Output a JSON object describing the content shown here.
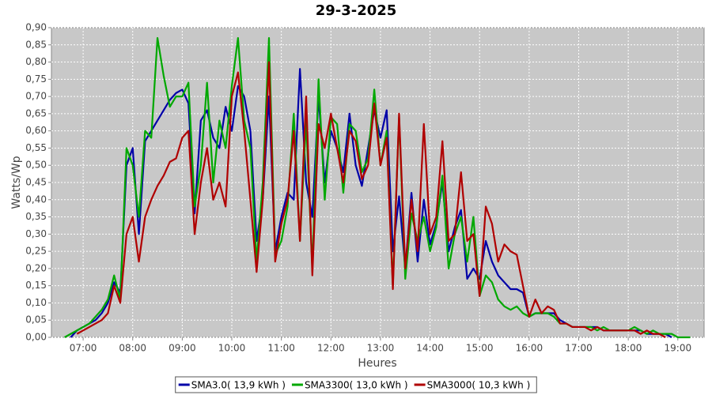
{
  "chart_data": {
    "type": "line",
    "title": "29-3-2025",
    "xlabel": "Heures",
    "ylabel": "Watts/Wp",
    "x": [
      6.5,
      6.625,
      6.75,
      6.875,
      7,
      7.125,
      7.25,
      7.375,
      7.5,
      7.625,
      7.75,
      7.875,
      8,
      8.125,
      8.25,
      8.375,
      8.5,
      8.625,
      8.75,
      8.875,
      9,
      9.125,
      9.25,
      9.375,
      9.5,
      9.625,
      9.75,
      9.875,
      10,
      10.125,
      10.25,
      10.375,
      10.5,
      10.625,
      10.75,
      10.875,
      11,
      11.125,
      11.25,
      11.375,
      11.5,
      11.625,
      11.75,
      11.875,
      12,
      12.125,
      12.25,
      12.375,
      12.5,
      12.625,
      12.75,
      12.875,
      13,
      13.125,
      13.25,
      13.375,
      13.5,
      13.625,
      13.75,
      13.875,
      14,
      14.125,
      14.25,
      14.375,
      14.5,
      14.625,
      14.75,
      14.875,
      15,
      15.125,
      15.25,
      15.375,
      15.5,
      15.625,
      15.75,
      15.875,
      16,
      16.125,
      16.25,
      16.375,
      16.5,
      16.625,
      16.75,
      16.875,
      17,
      17.125,
      17.25,
      17.375,
      17.5,
      17.625,
      17.75,
      17.875,
      18,
      18.125,
      18.25,
      18.375,
      18.5,
      18.625,
      18.75,
      18.875,
      19,
      19.125,
      19.25
    ],
    "series": [
      {
        "name": "SMA3.0( 13,9 kWh )",
        "color": "#0000a8",
        "values": [
          null,
          null,
          0,
          0.02,
          0.03,
          0.04,
          0.05,
          0.07,
          0.1,
          0.16,
          0.13,
          0.5,
          0.55,
          0.3,
          0.57,
          0.6,
          0.63,
          0.66,
          0.69,
          0.71,
          0.72,
          0.68,
          0.36,
          0.63,
          0.66,
          0.58,
          0.55,
          0.67,
          0.6,
          0.73,
          0.7,
          0.6,
          0.28,
          0.4,
          0.7,
          0.25,
          0.35,
          0.42,
          0.4,
          0.78,
          0.45,
          0.35,
          0.7,
          0.45,
          0.6,
          0.55,
          0.48,
          0.65,
          0.5,
          0.44,
          0.55,
          0.66,
          0.58,
          0.66,
          0.25,
          0.41,
          0.2,
          0.42,
          0.22,
          0.4,
          0.27,
          0.33,
          0.45,
          0.25,
          0.32,
          0.37,
          0.17,
          0.2,
          0.17,
          0.28,
          0.22,
          0.18,
          0.16,
          0.14,
          0.14,
          0.13,
          0.06,
          0.07,
          0.07,
          0.07,
          0.07,
          0.05,
          0.04,
          0.03,
          0.03,
          0.03,
          0.03,
          0.03,
          0.02,
          0.02,
          0.02,
          0.02,
          0.02,
          0.02,
          0.02,
          0.01,
          0.01,
          0.01,
          0.01,
          0,
          null,
          null,
          null
        ]
      },
      {
        "name": "SMA3300( 13,0 kWh )",
        "color": "#00a800",
        "values": [
          null,
          0,
          0.01,
          0.02,
          0.03,
          0.04,
          0.06,
          0.08,
          0.11,
          0.18,
          0.11,
          0.55,
          0.5,
          0.35,
          0.6,
          0.58,
          0.87,
          0.76,
          0.67,
          0.7,
          0.7,
          0.74,
          0.38,
          0.5,
          0.74,
          0.45,
          0.63,
          0.55,
          0.73,
          0.87,
          0.63,
          0.55,
          0.22,
          0.45,
          0.87,
          0.24,
          0.28,
          0.38,
          0.65,
          0.28,
          0.63,
          0.2,
          0.75,
          0.4,
          0.64,
          0.62,
          0.42,
          0.62,
          0.6,
          0.48,
          0.52,
          0.72,
          0.5,
          0.6,
          0.15,
          0.64,
          0.17,
          0.36,
          0.28,
          0.35,
          0.25,
          0.32,
          0.47,
          0.2,
          0.3,
          0.35,
          0.22,
          0.35,
          0.12,
          0.18,
          0.16,
          0.11,
          0.09,
          0.08,
          0.09,
          0.07,
          0.06,
          0.07,
          0.07,
          0.07,
          0.06,
          0.04,
          0.04,
          0.03,
          0.03,
          0.03,
          0.03,
          0.02,
          0.03,
          0.02,
          0.02,
          0.02,
          0.02,
          0.03,
          0.02,
          0.01,
          0.02,
          0.01,
          0.01,
          0.01,
          0,
          0,
          0
        ]
      },
      {
        "name": "SMA3000( 10,3 kWh )",
        "color": "#b00000",
        "values": [
          null,
          null,
          null,
          0.01,
          0.02,
          0.03,
          0.04,
          0.05,
          0.07,
          0.15,
          0.1,
          0.3,
          0.35,
          0.22,
          0.35,
          0.4,
          0.44,
          0.47,
          0.51,
          0.52,
          0.58,
          0.6,
          0.3,
          0.45,
          0.55,
          0.4,
          0.45,
          0.38,
          0.7,
          0.77,
          0.6,
          0.4,
          0.19,
          0.4,
          0.8,
          0.22,
          0.33,
          0.4,
          0.6,
          0.28,
          0.7,
          0.18,
          0.62,
          0.55,
          0.65,
          0.55,
          0.45,
          0.6,
          0.57,
          0.46,
          0.5,
          0.68,
          0.5,
          0.58,
          0.14,
          0.65,
          0.2,
          0.4,
          0.25,
          0.62,
          0.3,
          0.35,
          0.57,
          0.28,
          0.3,
          0.48,
          0.28,
          0.3,
          0.12,
          0.38,
          0.33,
          0.22,
          0.27,
          0.25,
          0.24,
          0.15,
          0.06,
          0.11,
          0.07,
          0.09,
          0.08,
          0.04,
          0.04,
          0.03,
          0.03,
          0.03,
          0.02,
          0.03,
          0.02,
          0.02,
          0.02,
          0.02,
          0.02,
          0.02,
          0.01,
          0.02,
          0.01,
          0.01,
          0,
          null,
          null,
          null,
          null
        ]
      }
    ],
    "xlim": [
      6.36,
      19.53
    ],
    "xticks": [
      {
        "value": 7,
        "label": "07:00"
      },
      {
        "value": 8,
        "label": "08:00"
      },
      {
        "value": 9,
        "label": "09:00"
      },
      {
        "value": 10,
        "label": "10:00"
      },
      {
        "value": 11,
        "label": "11:00"
      },
      {
        "value": 12,
        "label": "12:00"
      },
      {
        "value": 13,
        "label": "13:00"
      },
      {
        "value": 14,
        "label": "14:00"
      },
      {
        "value": 15,
        "label": "15:00"
      },
      {
        "value": 16,
        "label": "16:00"
      },
      {
        "value": 17,
        "label": "17:00"
      },
      {
        "value": 18,
        "label": "18:00"
      },
      {
        "value": 19,
        "label": "19:00"
      }
    ],
    "ylim": [
      0,
      0.9
    ],
    "yticks": [
      {
        "value": 0,
        "label": "0,00"
      },
      {
        "value": 0.05,
        "label": "0,05"
      },
      {
        "value": 0.1,
        "label": "0,10"
      },
      {
        "value": 0.15,
        "label": "0,15"
      },
      {
        "value": 0.2,
        "label": "0,20"
      },
      {
        "value": 0.25,
        "label": "0,25"
      },
      {
        "value": 0.3,
        "label": "0,30"
      },
      {
        "value": 0.35,
        "label": "0,35"
      },
      {
        "value": 0.4,
        "label": "0,40"
      },
      {
        "value": 0.45,
        "label": "0,45"
      },
      {
        "value": 0.5,
        "label": "0,50"
      },
      {
        "value": 0.55,
        "label": "0,55"
      },
      {
        "value": 0.6,
        "label": "0,60"
      },
      {
        "value": 0.65,
        "label": "0,65"
      },
      {
        "value": 0.7,
        "label": "0,70"
      },
      {
        "value": 0.75,
        "label": "0,75"
      },
      {
        "value": 0.8,
        "label": "0,80"
      },
      {
        "value": 0.85,
        "label": "0,85"
      },
      {
        "value": 0.9,
        "label": "0,90"
      }
    ],
    "grid": true,
    "legend": "bottom"
  }
}
